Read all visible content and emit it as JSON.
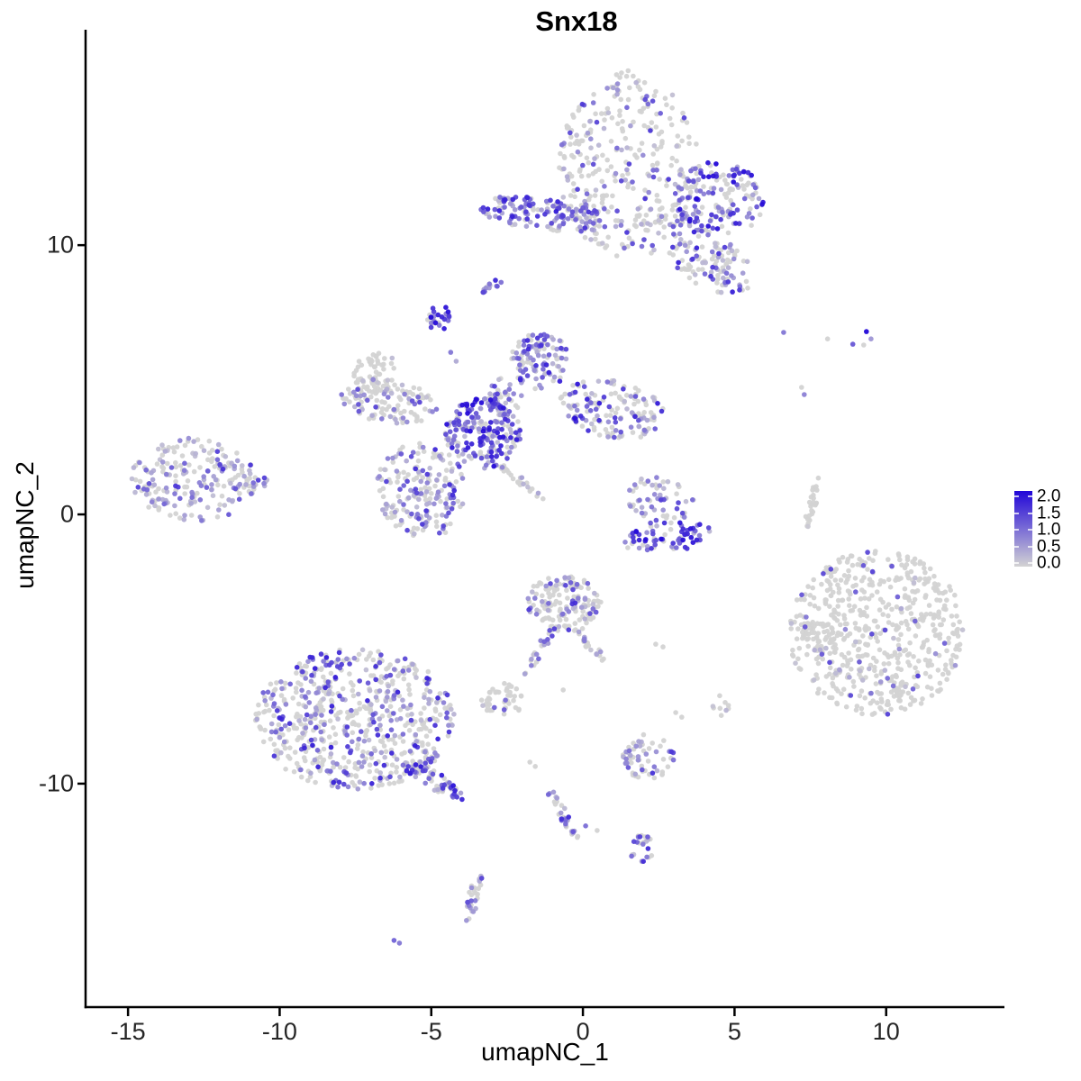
{
  "chart_data": {
    "type": "scatter",
    "title": "Snx18",
    "xlabel": "umapNC_1",
    "ylabel": "umapNC_2",
    "xlim": [
      -16.4,
      13.9
    ],
    "ylim": [
      -18.3,
      17.6
    ],
    "x_ticks": [
      -15,
      -10,
      -5,
      0,
      5,
      10
    ],
    "x_tick_labels": [
      "-15",
      "-10",
      "-5",
      "0",
      "5",
      "10"
    ],
    "y_ticks": [
      -10,
      0,
      10
    ],
    "y_tick_labels": [
      "-10",
      "0",
      "10"
    ],
    "grid": false,
    "point_radius_px": 2.8,
    "seed": 42,
    "colors": {
      "zero": "#D3D3D3",
      "max": "#2106D8"
    },
    "legend": {
      "position": "right",
      "labels": [
        "2.0",
        "1.5",
        "1.0",
        "0.5",
        "0.0"
      ],
      "values": [
        2.0,
        1.5,
        1.0,
        0.5,
        0.0
      ],
      "color_high": "#2106D8",
      "color_low": "#D3D3D3"
    },
    "clusters": [
      {
        "name": "top-main-blob",
        "n": 330,
        "cx": 1.5,
        "cy": 13.0,
        "rx": 2.3,
        "ry": 3.5,
        "rot": 0,
        "frac": 0.28,
        "hi": 1.6
      },
      {
        "name": "top-right-wing",
        "n": 170,
        "cx": 4.5,
        "cy": 11.7,
        "rx": 1.5,
        "ry": 1.4,
        "rot": -20,
        "frac": 0.6,
        "hi": 2.0,
        "pow": 0.8
      },
      {
        "name": "top-right-tail",
        "n": 110,
        "cx": 4.2,
        "cy": 9.4,
        "rx": 1.6,
        "ry": 0.95,
        "rot": -35,
        "frac": 0.4,
        "hi": 1.8
      },
      {
        "name": "upper-purple-band",
        "n": 150,
        "cx": -1.3,
        "cy": 11.15,
        "rx": 2.2,
        "ry": 0.6,
        "rot": -8,
        "frac": 0.8,
        "hi": 1.8,
        "pow": 1.1
      },
      {
        "name": "band-wing-link",
        "n": 22,
        "cx": 2.6,
        "cy": 10.9,
        "rx": 1.3,
        "ry": 0.3,
        "rot": 0,
        "frac": 0.45,
        "hi": 1.5
      },
      {
        "name": "mini-streak",
        "n": 14,
        "cx": -3.0,
        "cy": 8.5,
        "rx": 0.45,
        "ry": 0.16,
        "rot": 42,
        "frac": 0.85,
        "hi": 1.8
      },
      {
        "name": "dense-knob",
        "n": 26,
        "cx": -4.75,
        "cy": 7.3,
        "rx": 0.38,
        "ry": 0.5,
        "rot": 0,
        "frac": 0.9,
        "hi": 2.0,
        "pow": 0.8
      },
      {
        "name": "center-peak",
        "n": 110,
        "cx": -1.4,
        "cy": 5.7,
        "rx": 1.0,
        "ry": 1.05,
        "rot": 0,
        "frac": 0.68,
        "hi": 1.8
      },
      {
        "name": "center-neck",
        "n": 40,
        "cx": -2.6,
        "cy": 4.4,
        "rx": 0.6,
        "ry": 0.7,
        "rot": 0,
        "frac": 0.6,
        "hi": 1.6
      },
      {
        "name": "left-arm",
        "n": 130,
        "cx": -6.4,
        "cy": 4.2,
        "rx": 1.6,
        "ry": 0.8,
        "rot": -10,
        "frac": 0.3,
        "hi": 1.4
      },
      {
        "name": "left-arm-hook",
        "n": 45,
        "cx": -6.9,
        "cy": 5.4,
        "rx": 0.8,
        "ry": 0.55,
        "rot": 40,
        "frac": 0.15,
        "hi": 1.0
      },
      {
        "name": "center-dense-core",
        "n": 210,
        "cx": -3.3,
        "cy": 3.0,
        "rx": 1.25,
        "ry": 1.3,
        "rot": 0,
        "frac": 0.8,
        "hi": 2.0,
        "pow": 1.0
      },
      {
        "name": "right-arm",
        "n": 150,
        "cx": 1.0,
        "cy": 3.9,
        "rx": 1.8,
        "ry": 1.05,
        "rot": -15,
        "frac": 0.55,
        "hi": 1.9
      },
      {
        "name": "lower-left-mass",
        "n": 190,
        "cx": -5.3,
        "cy": 0.9,
        "rx": 1.5,
        "ry": 1.8,
        "rot": 15,
        "frac": 0.5,
        "hi": 1.7
      },
      {
        "name": "gray-diagonal-tail",
        "n": 26,
        "cx": -2.1,
        "cy": 1.3,
        "rx": 1.1,
        "ry": 0.13,
        "rot": -42,
        "frac": 0.12,
        "hi": 0.8
      },
      {
        "name": "left-island",
        "n": 210,
        "cx": -12.8,
        "cy": 1.3,
        "rx": 2.1,
        "ry": 1.55,
        "rot": 0,
        "frac": 0.5,
        "hi": 1.6
      },
      {
        "name": "left-island-tip",
        "n": 12,
        "cx": -10.8,
        "cy": 1.2,
        "rx": 0.65,
        "ry": 0.22,
        "rot": 0,
        "frac": 0.7,
        "hi": 1.5
      },
      {
        "name": "crescent-top",
        "n": 60,
        "cx": 2.55,
        "cy": 0.5,
        "rx": 1.15,
        "ry": 1.0,
        "rot": 0,
        "frac": 0.6,
        "hi": 1.6
      },
      {
        "name": "crescent-base",
        "n": 72,
        "cx": 2.8,
        "cy": -0.85,
        "rx": 1.5,
        "ry": 0.55,
        "rot": 8,
        "frac": 0.85,
        "hi": 2.0,
        "pow": 0.8
      },
      {
        "name": "thin-sliver",
        "n": 26,
        "cx": 7.55,
        "cy": 0.3,
        "rx": 1.15,
        "ry": 0.13,
        "rot": 78,
        "frac": 0.1,
        "hi": 0.8
      },
      {
        "name": "right-field",
        "n": 590,
        "cx": 9.7,
        "cy": -4.4,
        "rx": 2.9,
        "ry": 3.05,
        "rot": 0,
        "frac": 0.09,
        "hi": 1.5
      },
      {
        "name": "right-field-knot",
        "n": 40,
        "cx": 7.75,
        "cy": -4.5,
        "rx": 0.55,
        "ry": 0.6,
        "rot": 0,
        "frac": 0.12,
        "hi": 1.3
      },
      {
        "name": "mid-bottom",
        "n": 150,
        "cx": -0.65,
        "cy": -3.3,
        "rx": 1.25,
        "ry": 1.1,
        "rot": 0,
        "frac": 0.3,
        "hi": 1.7
      },
      {
        "name": "mid-bottom-arm-l",
        "n": 22,
        "cx": -1.45,
        "cy": -5.1,
        "rx": 1.0,
        "ry": 0.16,
        "rot": 62,
        "frac": 0.5,
        "hi": 1.6
      },
      {
        "name": "mid-bottom-arm-r",
        "n": 20,
        "cx": 0.25,
        "cy": -4.85,
        "rx": 0.75,
        "ry": 0.16,
        "rot": -55,
        "frac": 0.35,
        "hi": 1.2
      },
      {
        "name": "small-low-cluster",
        "n": 44,
        "cx": -2.65,
        "cy": -6.9,
        "rx": 0.7,
        "ry": 0.65,
        "rot": 0,
        "frac": 0.18,
        "hi": 1.3
      },
      {
        "name": "small-right-blob",
        "n": 9,
        "cx": 4.6,
        "cy": -7.1,
        "rx": 0.33,
        "ry": 0.38,
        "rot": 0,
        "frac": 0.15,
        "hi": 1.2
      },
      {
        "name": "bottom-left-mass",
        "n": 640,
        "cx": -7.5,
        "cy": -7.6,
        "rx": 3.3,
        "ry": 2.6,
        "rot": 0,
        "frac": 0.42,
        "hi": 1.8
      },
      {
        "name": "bottom-left-tail",
        "n": 70,
        "cx": -5.0,
        "cy": -9.8,
        "rx": 1.3,
        "ry": 0.32,
        "rot": -38,
        "frac": 0.6,
        "hi": 1.9,
        "pow": 1.0
      },
      {
        "name": "hanging-streak",
        "n": 30,
        "cx": -0.65,
        "cy": -11.1,
        "rx": 1.05,
        "ry": 0.18,
        "rot": -62,
        "frac": 0.72,
        "hi": 1.8
      },
      {
        "name": "small-mid-cluster",
        "n": 60,
        "cx": 2.15,
        "cy": -9.0,
        "rx": 0.85,
        "ry": 0.85,
        "rot": 0,
        "frac": 0.5,
        "hi": 1.7
      },
      {
        "name": "tiny-cluster",
        "n": 24,
        "cx": 2.0,
        "cy": -12.4,
        "rx": 0.5,
        "ry": 0.5,
        "rot": 0,
        "frac": 0.55,
        "hi": 1.7
      },
      {
        "name": "bottom-strand",
        "n": 30,
        "cx": -3.6,
        "cy": -14.2,
        "rx": 1.05,
        "ry": 0.18,
        "rot": 78,
        "frac": 0.55,
        "hi": 1.5
      }
    ],
    "singles": [
      {
        "x": 6.62,
        "y": 6.76,
        "e": 0.9
      },
      {
        "x": 8.07,
        "y": 6.52,
        "e": 0.0
      },
      {
        "x": 8.9,
        "y": 6.32,
        "e": 1.2
      },
      {
        "x": 9.35,
        "y": 6.79,
        "e": 2.0
      },
      {
        "x": 9.5,
        "y": 6.52,
        "e": 0.6
      },
      {
        "x": 9.26,
        "y": 6.29,
        "e": 0.0
      },
      {
        "x": 7.21,
        "y": 4.72,
        "e": 0.0
      },
      {
        "x": 7.3,
        "y": 4.45,
        "e": 0.8
      },
      {
        "x": -4.36,
        "y": 6.02,
        "e": 0.9
      },
      {
        "x": -4.18,
        "y": 5.69,
        "e": 0.4
      },
      {
        "x": -1.75,
        "y": -9.2,
        "e": 0.0
      },
      {
        "x": -1.57,
        "y": -9.36,
        "e": 0.0
      },
      {
        "x": -0.65,
        "y": -6.52,
        "e": 0.0
      },
      {
        "x": 2.4,
        "y": -4.82,
        "e": 0.0
      },
      {
        "x": 2.64,
        "y": -4.92,
        "e": 0.0
      },
      {
        "x": 3.06,
        "y": -7.36,
        "e": 0.0
      },
      {
        "x": 3.26,
        "y": -7.53,
        "e": 0.0
      },
      {
        "x": 0.09,
        "y": -11.57,
        "e": 1.0
      },
      {
        "x": 0.47,
        "y": -11.74,
        "e": 0.0
      },
      {
        "x": -6.23,
        "y": -15.82,
        "e": 1.1
      },
      {
        "x": -6.05,
        "y": -15.92,
        "e": 0.9
      }
    ]
  }
}
